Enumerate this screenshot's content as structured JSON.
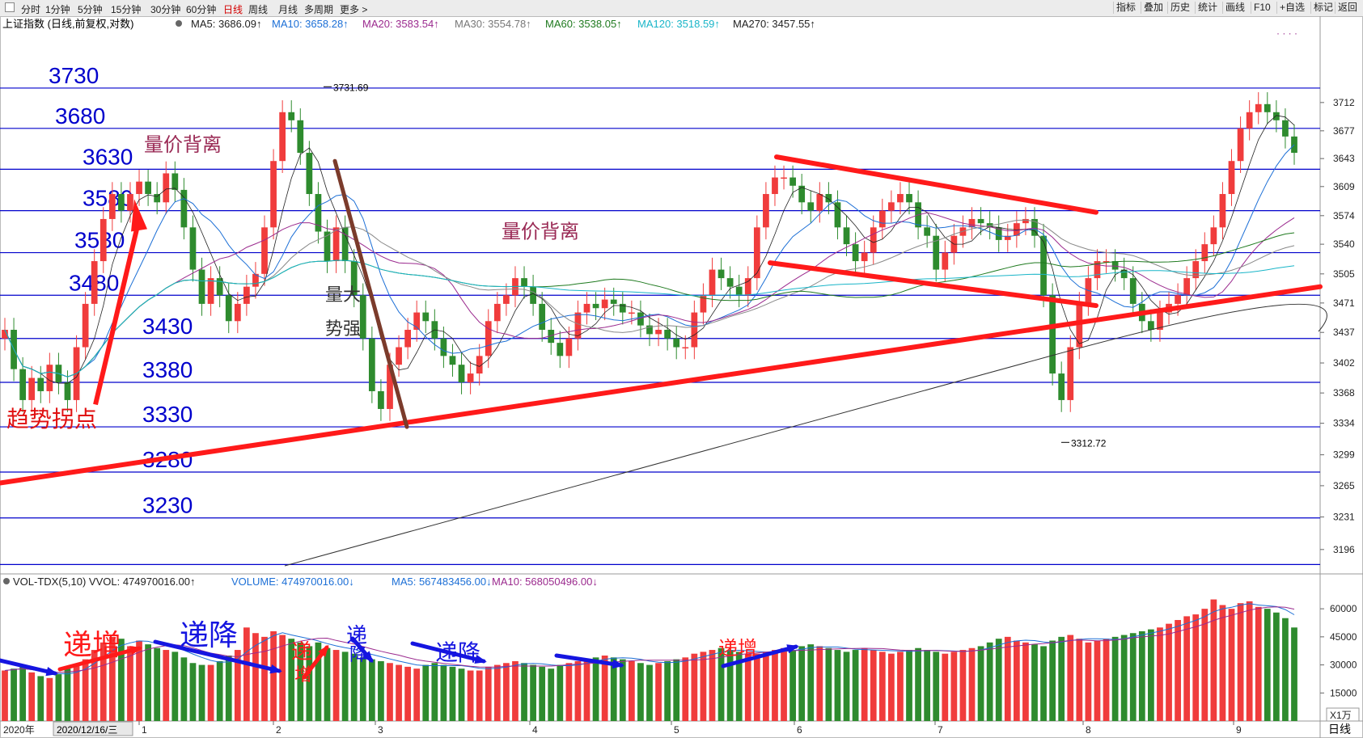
{
  "toolbar": {
    "periods": [
      "分时",
      "1分钟",
      "5分钟",
      "15分钟",
      "30分钟",
      "60分钟",
      "日线",
      "周线",
      "月线",
      "多周期",
      "更多 >"
    ],
    "active_period": "日线",
    "right_buttons": [
      "指标",
      "叠加",
      "历史",
      "统计",
      "画线",
      "F10",
      "+自选",
      "标记",
      "返回"
    ]
  },
  "price_panel": {
    "index_name": "上证指数 (日线,前复权,对数)",
    "ma_legend": [
      {
        "label": "MA5: 3686.09",
        "color": "#222222"
      },
      {
        "label": "MA10: 3658.28",
        "color": "#1c6fd6"
      },
      {
        "label": "MA20: 3583.54",
        "color": "#9b2a8e"
      },
      {
        "label": "MA30: 3554.78",
        "color": "#777777"
      },
      {
        "label": "MA60: 3538.05",
        "color": "#1f7a1f"
      },
      {
        "label": "MA120: 3518.59",
        "color": "#19b5c8"
      },
      {
        "label": "MA270: 3457.55",
        "color": "#222222"
      }
    ],
    "high_label": "3731.69",
    "low_label": "3312.72",
    "right_axis_ticks": [
      3712,
      3677,
      3643,
      3609,
      3574,
      3540,
      3505,
      3471,
      3437,
      3402,
      3368,
      3334,
      3299,
      3265,
      3231,
      3196
    ]
  },
  "annotations": {
    "level_labels": [
      "3730",
      "3680",
      "3630",
      "3580",
      "3530",
      "3480",
      "3430",
      "3380",
      "3330",
      "3280",
      "3230"
    ],
    "texts": [
      "量价背离",
      "量价背离",
      "量大",
      "势强",
      "趋势拐点"
    ],
    "vol_texts": [
      "递增",
      "递降",
      "递",
      "增",
      "递",
      "降",
      "递降",
      "递增"
    ]
  },
  "volume_panel": {
    "legend": [
      {
        "label": "VOL-TDX(5,10) VVOL: 474970016.00",
        "color": "#222222"
      },
      {
        "label": "VOLUME: 474970016.00",
        "color": "#1c6fd6"
      },
      {
        "label": "MA5: 567483456.00",
        "color": "#1c6fd6"
      },
      {
        "label": "MA10: 568050496.00",
        "color": "#9b2a8e"
      }
    ],
    "axis_ticks": [
      "60000",
      "45000",
      "30000",
      "15000"
    ],
    "unit": "X1万"
  },
  "xaxis": {
    "year_label": "2020年",
    "cursor_date": "2020/12/16/三",
    "months": [
      "1",
      "2",
      "3",
      "4",
      "5",
      "6",
      "7",
      "8",
      "9"
    ],
    "period_label": "日线"
  },
  "colors": {
    "up": "#f03c3c",
    "down": "#2e8b2e",
    "line": "#0000cc",
    "trend": "#ff1a1a",
    "arrow": "#1515e0"
  },
  "chart_data": {
    "type": "candlestick",
    "period": "daily",
    "scale": "log",
    "ylim": [
      3170,
      3790
    ],
    "high": 3731.69,
    "low": 3312.72,
    "price_path": [
      3440,
      3395,
      3360,
      3385,
      3370,
      3400,
      3380,
      3360,
      3420,
      3470,
      3520,
      3570,
      3600,
      3580,
      3600,
      3615,
      3600,
      3590,
      3625,
      3605,
      3560,
      3510,
      3470,
      3500,
      3480,
      3450,
      3470,
      3490,
      3505,
      3560,
      3640,
      3700,
      3690,
      3650,
      3600,
      3555,
      3520,
      3560,
      3520,
      3480,
      3430,
      3370,
      3350,
      3400,
      3420,
      3440,
      3460,
      3450,
      3430,
      3410,
      3400,
      3380,
      3390,
      3410,
      3450,
      3470,
      3480,
      3500,
      3490,
      3470,
      3440,
      3425,
      3410,
      3430,
      3460,
      3470,
      3465,
      3475,
      3470,
      3460,
      3460,
      3445,
      3435,
      3440,
      3430,
      3420,
      3420,
      3460,
      3480,
      3510,
      3500,
      3490,
      3480,
      3500,
      3560,
      3600,
      3620,
      3620,
      3610,
      3590,
      3580,
      3600,
      3590,
      3560,
      3540,
      3520,
      3530,
      3560,
      3580,
      3590,
      3600,
      3590,
      3560,
      3550,
      3510,
      3530,
      3550,
      3560,
      3570,
      3565,
      3560,
      3545,
      3550,
      3565,
      3570,
      3550,
      3480,
      3390,
      3360,
      3420,
      3470,
      3500,
      3520,
      3520,
      3510,
      3500,
      3470,
      3450,
      3440,
      3460,
      3470,
      3480,
      3500,
      3520,
      3540,
      3560,
      3600,
      3640,
      3680,
      3700,
      3710,
      3700,
      3690,
      3670,
      3650
    ],
    "ma_series_levels": {
      "MA5": 3686.09,
      "MA10": 3658.28,
      "MA20": 3583.54,
      "MA30": 3554.78,
      "MA60": 3538.05,
      "MA120": 3518.59,
      "MA270": 3457.55
    },
    "volume_unit": "万",
    "volume_ylim": [
      0,
      70000
    ],
    "volume": [
      27000,
      28000,
      29000,
      26000,
      24000,
      23000,
      25000,
      28000,
      30000,
      33000,
      38000,
      42000,
      45000,
      44000,
      40000,
      43000,
      41000,
      39000,
      38000,
      37000,
      34000,
      31000,
      30000,
      30000,
      32000,
      35000,
      38000,
      50000,
      47000,
      45000,
      48000,
      46000,
      44000,
      42000,
      40000,
      42000,
      39000,
      38000,
      37000,
      36000,
      34000,
      33000,
      32000,
      31000,
      30000,
      29000,
      28000,
      30000,
      31000,
      30000,
      29000,
      28000,
      27000,
      27000,
      29000,
      30000,
      31000,
      32000,
      31000,
      30000,
      29000,
      28000,
      30000,
      31000,
      32000,
      33000,
      34000,
      35000,
      34000,
      33000,
      32000,
      31000,
      30000,
      31000,
      32000,
      33000,
      34000,
      36000,
      37000,
      38000,
      39000,
      38000,
      37000,
      36000,
      36000,
      37000,
      38000,
      39000,
      38000,
      40000,
      41000,
      40000,
      39000,
      38000,
      37000,
      38000,
      39000,
      38000,
      37000,
      36000,
      37000,
      38000,
      39000,
      38000,
      37000,
      36000,
      37000,
      38000,
      39000,
      40000,
      42000,
      44000,
      45000,
      43000,
      42000,
      41000,
      40000,
      43000,
      45000,
      46000,
      44000,
      42000,
      43000,
      44000,
      45000,
      46000,
      47000,
      48000,
      49000,
      50000,
      52000,
      54000,
      56000,
      57000,
      60000,
      65000,
      62000,
      60000,
      63000,
      64000,
      61000,
      60000,
      58000,
      55000,
      50000,
      47000
    ]
  }
}
